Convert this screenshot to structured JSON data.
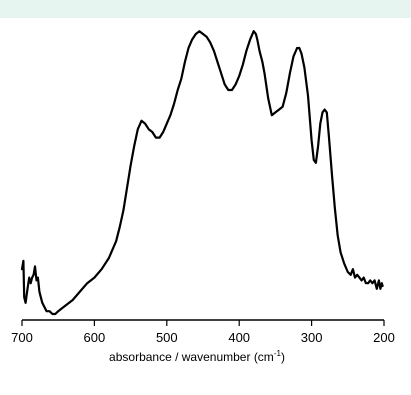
{
  "header_band_color": "#e6f5f0",
  "chart_data": {
    "type": "line",
    "title": "",
    "xlabel": "absorbance / wavenumber",
    "xlabel_unit": "(cm",
    "xlabel_unit_sup": "-1",
    "xlabel_unit_close": ")",
    "ylabel": "",
    "xlim": [
      700,
      200
    ],
    "x_reversed": true,
    "ylim": [
      0,
      1
    ],
    "y_axis_visible": false,
    "grid": false,
    "xticks": [
      700,
      600,
      500,
      400,
      300,
      200
    ],
    "x_tick_labels": [
      "700",
      "600",
      "500",
      "400",
      "300",
      "200"
    ],
    "series": [
      {
        "color": "#000000",
        "x": [
          700,
          698,
          697,
          695,
          693,
          690,
          688,
          686,
          684,
          682,
          680,
          678,
          676,
          674,
          672,
          670,
          666,
          662,
          658,
          654,
          650,
          645,
          640,
          630,
          620,
          610,
          600,
          590,
          580,
          570,
          565,
          560,
          555,
          550,
          545,
          540,
          535,
          530,
          525,
          520,
          515,
          510,
          505,
          500,
          495,
          490,
          485,
          480,
          475,
          470,
          465,
          460,
          455,
          450,
          445,
          440,
          435,
          430,
          425,
          420,
          415,
          410,
          405,
          400,
          395,
          390,
          385,
          380,
          377,
          375,
          372,
          368,
          365,
          360,
          355,
          350,
          345,
          340,
          335,
          330,
          325,
          320,
          317,
          314,
          310,
          305,
          300,
          297,
          294,
          291,
          288,
          285,
          282,
          279,
          276,
          272,
          268,
          264,
          260,
          255,
          250,
          246,
          243,
          240,
          237,
          234,
          231,
          228,
          225,
          222,
          219,
          216,
          213,
          210,
          207,
          205,
          203,
          202
        ],
        "y": [
          0.16,
          0.19,
          0.06,
          0.04,
          0.08,
          0.13,
          0.11,
          0.13,
          0.14,
          0.17,
          0.12,
          0.13,
          0.08,
          0.06,
          0.04,
          0.03,
          0.01,
          0.01,
          0.0,
          0.0,
          0.01,
          0.02,
          0.03,
          0.05,
          0.08,
          0.11,
          0.13,
          0.16,
          0.2,
          0.26,
          0.31,
          0.37,
          0.45,
          0.53,
          0.6,
          0.66,
          0.69,
          0.68,
          0.66,
          0.65,
          0.63,
          0.63,
          0.65,
          0.68,
          0.71,
          0.75,
          0.8,
          0.84,
          0.9,
          0.95,
          0.98,
          1.0,
          1.01,
          1.0,
          0.99,
          0.97,
          0.94,
          0.9,
          0.86,
          0.82,
          0.8,
          0.8,
          0.82,
          0.85,
          0.89,
          0.94,
          0.98,
          1.01,
          1.0,
          0.98,
          0.94,
          0.9,
          0.86,
          0.77,
          0.71,
          0.72,
          0.73,
          0.74,
          0.79,
          0.86,
          0.92,
          0.95,
          0.95,
          0.93,
          0.88,
          0.78,
          0.62,
          0.55,
          0.54,
          0.6,
          0.68,
          0.72,
          0.73,
          0.72,
          0.63,
          0.5,
          0.38,
          0.28,
          0.22,
          0.18,
          0.15,
          0.14,
          0.16,
          0.13,
          0.14,
          0.13,
          0.12,
          0.13,
          0.11,
          0.11,
          0.12,
          0.11,
          0.12,
          0.09,
          0.12,
          0.09,
          0.11,
          0.1
        ]
      }
    ]
  }
}
